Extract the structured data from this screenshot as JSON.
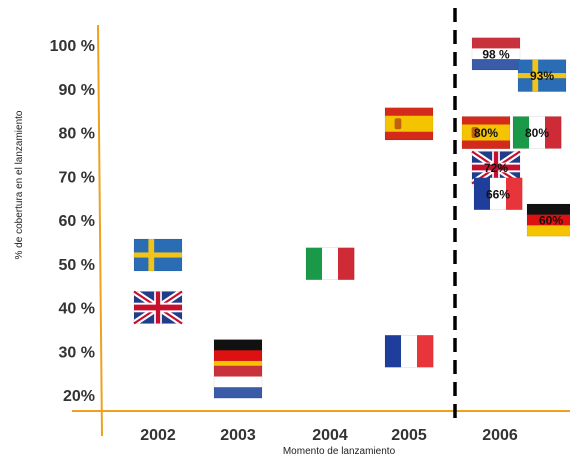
{
  "chart_data": {
    "type": "scatter",
    "title": "",
    "xlabel": "Momento de lanzamiento",
    "ylabel": "% de cobertura en el  lanzamiento",
    "categories": [
      "2002",
      "2003",
      "2004",
      "2005",
      "2006"
    ],
    "yticks": [
      "20%",
      "30 %",
      "40 %",
      "50 %",
      "60 %",
      "70 %",
      "80 %",
      "90 %",
      "100 %"
    ],
    "ylim": [
      18,
      103
    ],
    "grid": false,
    "legend": "none",
    "divider_after": "2005",
    "axis_color": "#f0a020",
    "points": [
      {
        "country": "Sweden",
        "year": "2002",
        "value": 52,
        "label": ""
      },
      {
        "country": "United Kingdom",
        "year": "2002",
        "value": 40,
        "label": ""
      },
      {
        "country": "Germany",
        "year": "2003",
        "value": 29,
        "label": ""
      },
      {
        "country": "Netherlands",
        "year": "2003",
        "value": 23,
        "label": ""
      },
      {
        "country": "Italy",
        "year": "2004",
        "value": 50,
        "label": ""
      },
      {
        "country": "Spain",
        "year": "2005",
        "value": 82,
        "label": ""
      },
      {
        "country": "France",
        "year": "2005",
        "value": 30,
        "label": ""
      },
      {
        "country": "Netherlands",
        "year": "2006",
        "value": 98,
        "label": "98 %"
      },
      {
        "country": "Sweden",
        "year": "2006",
        "value": 93,
        "label": "93%"
      },
      {
        "country": "Spain",
        "year": "2006",
        "value": 80,
        "label": "80%"
      },
      {
        "country": "Italy",
        "year": "2006",
        "value": 80,
        "label": "80%"
      },
      {
        "country": "United Kingdom",
        "year": "2006",
        "value": 72,
        "label": "72%"
      },
      {
        "country": "France",
        "year": "2006",
        "value": 66,
        "label": "66%"
      },
      {
        "country": "Germany",
        "year": "2006",
        "value": 60,
        "label": "60%"
      }
    ]
  }
}
